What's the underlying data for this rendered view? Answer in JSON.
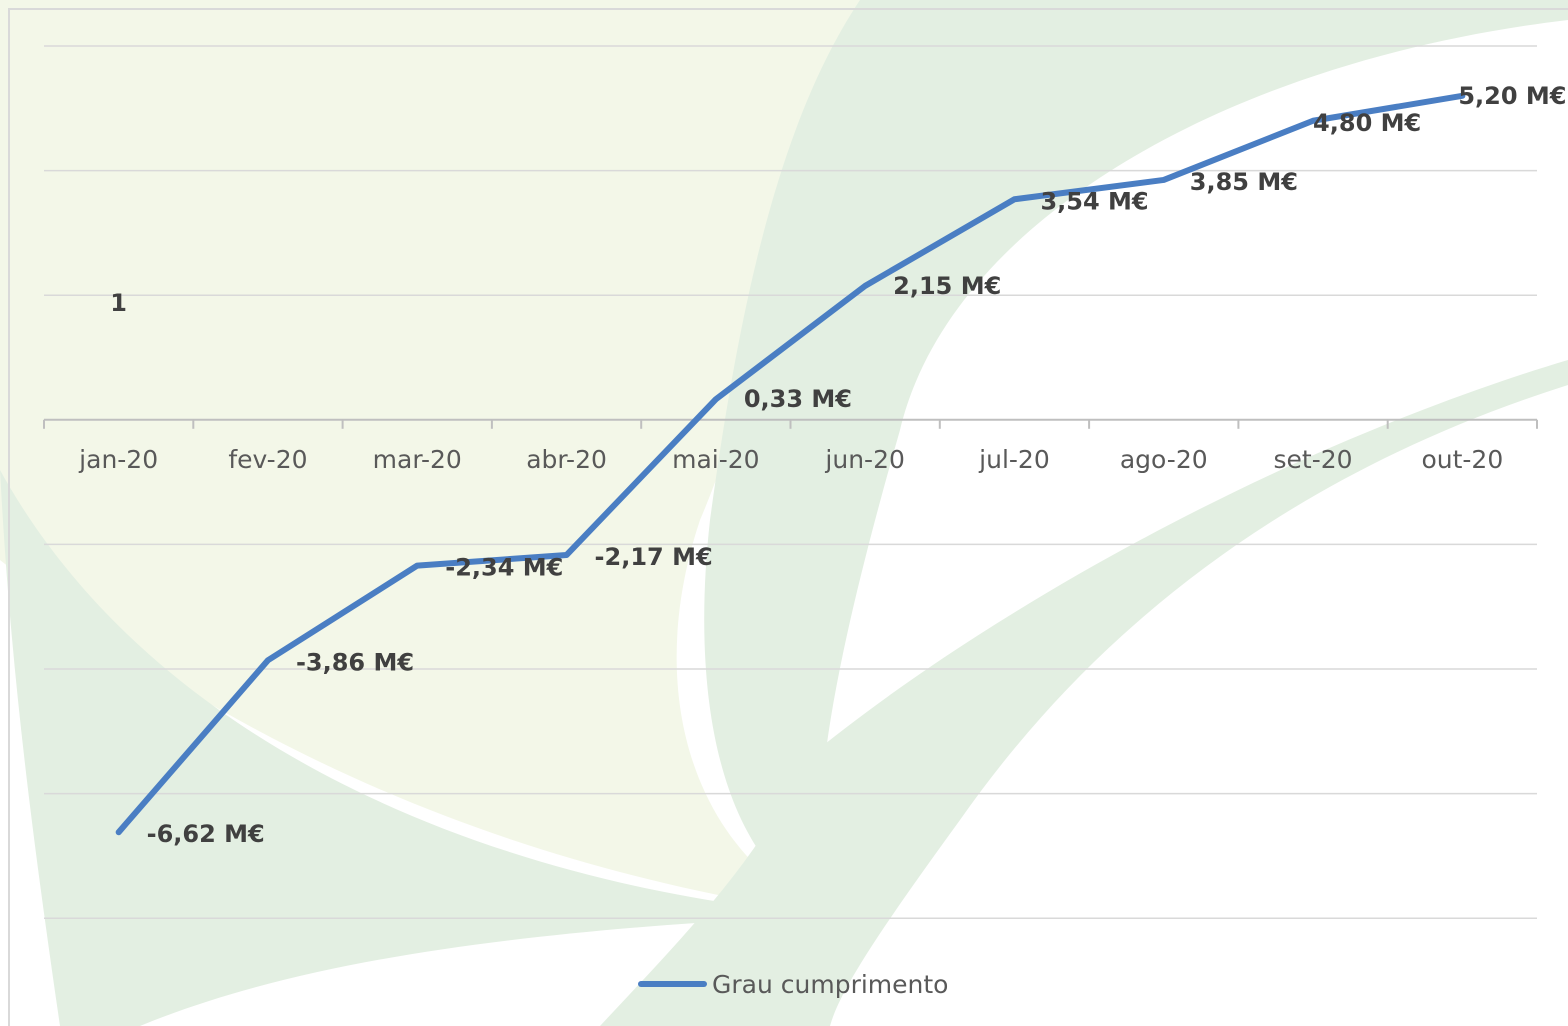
{
  "colors": {
    "line": "#4a7ec3",
    "gridline": "#d9d9d9",
    "axis": "#bfbfbf",
    "bg_light": "#f3f7e8",
    "bg_green": "#e3efe2",
    "border": "#d9d9d9"
  },
  "chart_data": {
    "type": "line",
    "categories": [
      "jan-20",
      "fev-20",
      "mar-20",
      "abr-20",
      "mai-20",
      "jun-20",
      "jul-20",
      "ago-20",
      "set-20",
      "out-20"
    ],
    "series": [
      {
        "name": "Grau cumprimento",
        "values": [
          -6.62,
          -3.86,
          -2.34,
          -2.17,
          0.33,
          2.15,
          3.54,
          3.85,
          4.8,
          5.2
        ],
        "labels": [
          "-6,62 M€",
          "-3,86 M€",
          "-2,34 M€",
          "-2,17 M€",
          "0,33 M€",
          "2,15 M€",
          "3,54 M€",
          "3,85 M€",
          "4,80 M€",
          "5,20 M€"
        ]
      }
    ],
    "ylim": [
      -8,
      6
    ],
    "ygrid_step": 2,
    "grid": true,
    "legend": "bottom",
    "stray_label": "1"
  }
}
